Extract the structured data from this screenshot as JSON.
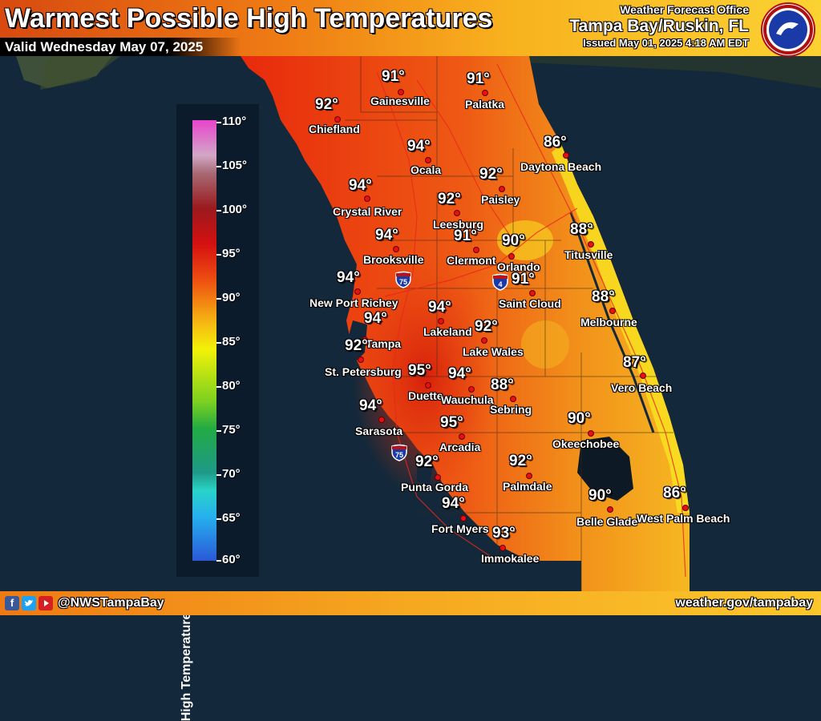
{
  "header": {
    "title": "Warmest Possible High Temperatures",
    "valid": "Valid Wednesday May 07, 2025",
    "office_line1": "Weather Forecast Office",
    "office_line2": "Tampa Bay/Ruskin, FL",
    "issued": "Issued May 01, 2025 4:18 AM EDT",
    "logo_text": "NATIONAL WEATHER SERVICE"
  },
  "legend": {
    "title": "High Temperature (F)",
    "ticks": [
      "110°",
      "105°",
      "100°",
      "95°",
      "90°",
      "85°",
      "80°",
      "75°",
      "70°",
      "65°",
      "60°"
    ]
  },
  "cities": [
    {
      "name": "Gainesville",
      "temp": "91°"
    },
    {
      "name": "Palatka",
      "temp": "91°"
    },
    {
      "name": "Chiefland",
      "temp": "92°"
    },
    {
      "name": "Ocala",
      "temp": "94°"
    },
    {
      "name": "Daytona Beach",
      "temp": "86°"
    },
    {
      "name": "Paisley",
      "temp": "92°"
    },
    {
      "name": "Crystal River",
      "temp": "94°"
    },
    {
      "name": "Leesburg",
      "temp": "92°"
    },
    {
      "name": "Clermont",
      "temp": "91°"
    },
    {
      "name": "Orlando",
      "temp": "90°"
    },
    {
      "name": "Titusville",
      "temp": "88°"
    },
    {
      "name": "Brooksville",
      "temp": "94°"
    },
    {
      "name": "New Port Richey",
      "temp": "94°"
    },
    {
      "name": "Saint Cloud",
      "temp": "91°"
    },
    {
      "name": "Melbourne",
      "temp": "88°"
    },
    {
      "name": "Tampa",
      "temp": "94°"
    },
    {
      "name": "Lakeland",
      "temp": "94°"
    },
    {
      "name": "Lake Wales",
      "temp": "92°"
    },
    {
      "name": "St. Petersburg",
      "temp": "92°"
    },
    {
      "name": "Duette",
      "temp": "95°"
    },
    {
      "name": "Wauchula",
      "temp": "94°"
    },
    {
      "name": "Sebring",
      "temp": "88°"
    },
    {
      "name": "Vero Beach",
      "temp": "87°"
    },
    {
      "name": "Sarasota",
      "temp": "94°"
    },
    {
      "name": "Arcadia",
      "temp": "95°"
    },
    {
      "name": "Okeechobee",
      "temp": "90°"
    },
    {
      "name": "Punta Gorda",
      "temp": "92°"
    },
    {
      "name": "Palmdale",
      "temp": "92°"
    },
    {
      "name": "Fort Myers",
      "temp": "94°"
    },
    {
      "name": "Belle Glade",
      "temp": "90°"
    },
    {
      "name": "West Palm Beach",
      "temp": "86°"
    },
    {
      "name": "Immokalee",
      "temp": "93°"
    }
  ],
  "highways": [
    "75",
    "4",
    "75"
  ],
  "footer": {
    "handle": "@NWSTampaBay",
    "site": "weather.gov/tampabay",
    "icons": [
      "facebook-icon",
      "twitter-icon",
      "youtube-icon"
    ]
  },
  "colors": {
    "land_hot": "#e2330e",
    "land_warm": "#f0861a",
    "coast_cool": "#f8e020",
    "water": "#13283a"
  }
}
